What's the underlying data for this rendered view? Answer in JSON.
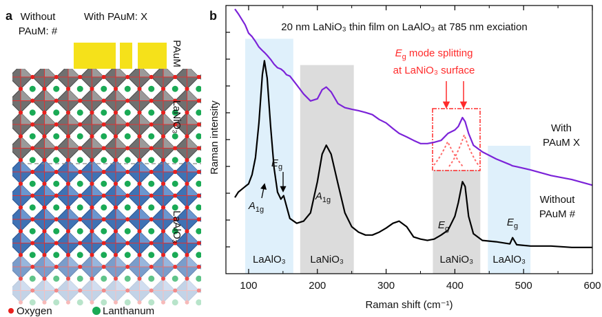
{
  "chart_data": {
    "type": "line",
    "panel_label": "b",
    "title": "20 nm LaNiO₃ thin film on LaAlO₃ at 785 nm exciation",
    "x_label": "Raman shift (cm⁻¹)",
    "y_label": "Raman intensity",
    "x": [
      80,
      85,
      95,
      100,
      105,
      110,
      115,
      120,
      123,
      127,
      132,
      137,
      142,
      147,
      151,
      155,
      160,
      170,
      180,
      190,
      200,
      207,
      213,
      220,
      230,
      240,
      250,
      260,
      270,
      280,
      290,
      300,
      310,
      319,
      330,
      340,
      350,
      360,
      370,
      380,
      390,
      400,
      405,
      411,
      415,
      420,
      427,
      440,
      460,
      480,
      484,
      490,
      510,
      540,
      570,
      600
    ],
    "series": [
      {
        "name": "With PAuM X",
        "color": "#7b22d8",
        "values": [
          9.87,
          9.69,
          9.28,
          8.97,
          8.84,
          8.66,
          8.45,
          8.32,
          8.25,
          8.14,
          7.99,
          7.81,
          7.68,
          7.63,
          7.55,
          7.42,
          7.37,
          7.04,
          6.7,
          6.44,
          6.52,
          6.86,
          6.96,
          6.78,
          6.34,
          6.19,
          6.13,
          6.08,
          6.01,
          5.93,
          5.75,
          5.62,
          5.41,
          5.23,
          5.1,
          4.97,
          4.85,
          4.85,
          4.9,
          4.97,
          5.23,
          5.36,
          5.49,
          5.82,
          5.67,
          5.23,
          4.79,
          4.54,
          4.28,
          4.07,
          4.02,
          3.99,
          3.87,
          3.66,
          3.51,
          3.3
        ]
      },
      {
        "name": "Without PAuM #",
        "color": "#000000",
        "values": [
          2.84,
          3.04,
          3.25,
          3.35,
          3.69,
          4.33,
          5.62,
          7.42,
          7.94,
          7.29,
          5.49,
          3.94,
          3.04,
          2.78,
          2.91,
          2.53,
          2.06,
          1.88,
          1.96,
          2.27,
          3.43,
          4.46,
          4.79,
          4.46,
          3.35,
          2.27,
          1.75,
          1.55,
          1.44,
          1.44,
          1.55,
          1.7,
          1.88,
          1.96,
          1.75,
          1.37,
          1.29,
          1.24,
          1.29,
          1.44,
          1.62,
          2.14,
          2.65,
          3.43,
          3.25,
          2.14,
          1.49,
          1.24,
          1.19,
          1.11,
          1.34,
          1.08,
          1.03,
          1.03,
          0.98,
          0.98
        ]
      }
    ],
    "xlim": [
      67,
      600
    ],
    "xticks": [
      100,
      200,
      300,
      400,
      500,
      600
    ],
    "xticks_minor": [
      150,
      250,
      350,
      450,
      550
    ],
    "ylim": [
      0,
      10
    ],
    "yticks": [
      1,
      2,
      3,
      4,
      5,
      6,
      7,
      8,
      9
    ],
    "regions": [
      {
        "label": "LaAlO₃",
        "range": [
          95,
          165
        ],
        "top": 8.76,
        "color": "#dff0fb"
      },
      {
        "label": "LaNiO₃",
        "range": [
          175,
          253
        ],
        "top": 7.78,
        "color": "#dcdcdc"
      },
      {
        "label": "LaNiO₃",
        "range": [
          368,
          437
        ],
        "top": 3.87,
        "color": "#dcdcdc"
      },
      {
        "label": "LaAlO₃",
        "range": [
          448,
          510
        ],
        "top": 4.77,
        "color": "#dff0fb"
      }
    ],
    "annotations": [
      {
        "text": "A",
        "sub": "1g"
      },
      {
        "text": "E",
        "sub": "g"
      },
      {
        "text": "A",
        "sub": "1g"
      },
      {
        "text": "E",
        "sub": "g"
      },
      {
        "text": "E",
        "sub": "g"
      }
    ],
    "note": {
      "color": "#ff2a2a",
      "line1": {
        "text": "E",
        "sub": "g",
        "rest": " mode splitting"
      },
      "line2": "at LaNiO₃ surface"
    }
  },
  "diagram": {
    "panel_label": "a",
    "without_label": "Without PAuM: #",
    "with_label": "With PAuM: X",
    "layers": [
      "PAuM",
      "LaNiO₃",
      "LaAlO₃"
    ],
    "legend": [
      {
        "name": "Oxygen",
        "color": "#e8211e"
      },
      {
        "name": "Lanthanum",
        "color": "#1aaa55"
      }
    ]
  }
}
